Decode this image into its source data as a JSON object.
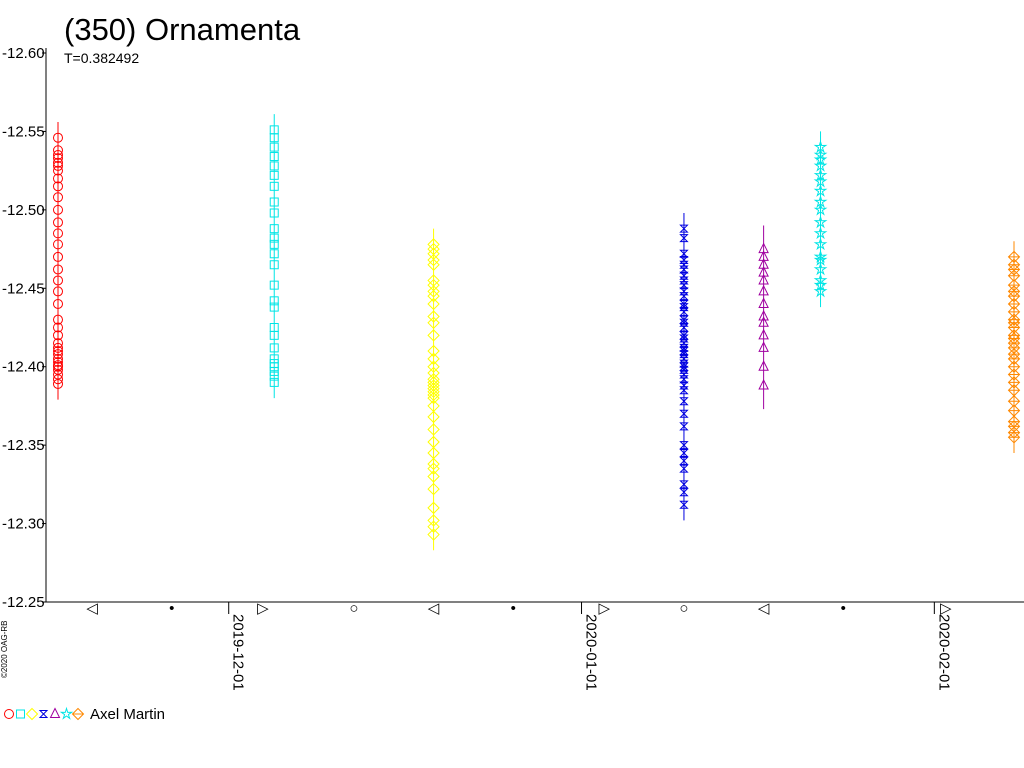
{
  "chart_data": {
    "type": "scatter",
    "title": "(350) Ornamenta",
    "subtitle": "T=0.382492",
    "xlabel": "",
    "ylabel": "",
    "ylim": [
      -12.6,
      -12.25
    ],
    "y_inverted": true,
    "y_ticks": [
      "-12.60",
      "-12.55",
      "-12.50",
      "-12.45",
      "-12.40",
      "-12.35",
      "-12.30",
      "-12.25"
    ],
    "xlim": [
      "2019-11-16",
      "2020-02-08"
    ],
    "x_ticks": [
      "2019-12-01",
      "2020-01-01",
      "2020-02-01"
    ],
    "moon_phases": [
      {
        "date": "2019-11-19",
        "symbol": "◁"
      },
      {
        "date": "2019-11-26",
        "symbol": "•"
      },
      {
        "date": "2019-12-04",
        "symbol": "▷"
      },
      {
        "date": "2019-12-12",
        "symbol": "○"
      },
      {
        "date": "2019-12-19",
        "symbol": "◁"
      },
      {
        "date": "2019-12-26",
        "symbol": "•"
      },
      {
        "date": "2020-01-03",
        "symbol": "▷"
      },
      {
        "date": "2020-01-10",
        "symbol": "○"
      },
      {
        "date": "2020-01-17",
        "symbol": "◁"
      },
      {
        "date": "2020-01-24",
        "symbol": "•"
      },
      {
        "date": "2020-02-02",
        "symbol": "▷"
      }
    ],
    "copyright": "©2020 OAG-RB",
    "legend_label": "Axel Martin",
    "series": [
      {
        "marker": "circle",
        "color": "#ff0000",
        "x": "2019-11-16",
        "error": 0.01,
        "values": [
          -12.546,
          -12.538,
          -12.535,
          -12.533,
          -12.53,
          -12.528,
          -12.525,
          -12.52,
          -12.515,
          -12.508,
          -12.5,
          -12.492,
          -12.485,
          -12.478,
          -12.47,
          -12.462,
          -12.455,
          -12.448,
          -12.44,
          -12.43,
          -12.425,
          -12.42,
          -12.415,
          -12.412,
          -12.41,
          -12.408,
          -12.405,
          -12.403,
          -12.401,
          -12.4,
          -12.398,
          -12.395,
          -12.392,
          -12.389
        ]
      },
      {
        "marker": "square",
        "color": "#00e5e5",
        "x": "2019-12-05",
        "error": 0.01,
        "values": [
          -12.551,
          -12.546,
          -12.54,
          -12.534,
          -12.528,
          -12.522,
          -12.515,
          -12.505,
          -12.498,
          -12.488,
          -12.482,
          -12.478,
          -12.472,
          -12.465,
          -12.452,
          -12.442,
          -12.438,
          -12.425,
          -12.42,
          -12.412,
          -12.405,
          -12.402,
          -12.4,
          -12.397,
          -12.394,
          -12.39
        ]
      },
      {
        "marker": "diamond",
        "color": "#ffff00",
        "x": "2019-12-19",
        "error": 0.01,
        "values": [
          -12.478,
          -12.475,
          -12.472,
          -12.468,
          -12.465,
          -12.455,
          -12.452,
          -12.448,
          -12.445,
          -12.44,
          -12.432,
          -12.428,
          -12.42,
          -12.41,
          -12.405,
          -12.4,
          -12.396,
          -12.392,
          -12.39,
          -12.388,
          -12.386,
          -12.384,
          -12.382,
          -12.38,
          -12.375,
          -12.368,
          -12.36,
          -12.352,
          -12.345,
          -12.338,
          -12.335,
          -12.33,
          -12.322,
          -12.31,
          -12.302,
          -12.298,
          -12.293
        ]
      },
      {
        "marker": "hourglass",
        "color": "#0000e0",
        "x": "2020-01-10",
        "error": 0.01,
        "values": [
          -12.488,
          -12.482,
          -12.472,
          -12.468,
          -12.465,
          -12.462,
          -12.458,
          -12.455,
          -12.452,
          -12.448,
          -12.445,
          -12.44,
          -12.438,
          -12.435,
          -12.43,
          -12.428,
          -12.425,
          -12.42,
          -12.418,
          -12.415,
          -12.412,
          -12.41,
          -12.408,
          -12.405,
          -12.402,
          -12.4,
          -12.398,
          -12.395,
          -12.392,
          -12.388,
          -12.385,
          -12.378,
          -12.37,
          -12.362,
          -12.35,
          -12.345,
          -12.34,
          -12.335,
          -12.325,
          -12.32,
          -12.312
        ]
      },
      {
        "marker": "triangle",
        "color": "#a000a0",
        "x": "2020-01-17",
        "error": 0.015,
        "values": [
          -12.475,
          -12.47,
          -12.465,
          -12.46,
          -12.455,
          -12.448,
          -12.44,
          -12.432,
          -12.428,
          -12.42,
          -12.412,
          -12.4,
          -12.388
        ]
      },
      {
        "marker": "star",
        "color": "#00e5e5",
        "x": "2020-01-22",
        "error": 0.01,
        "values": [
          -12.54,
          -12.535,
          -12.532,
          -12.528,
          -12.522,
          -12.518,
          -12.512,
          -12.505,
          -12.5,
          -12.492,
          -12.485,
          -12.478,
          -12.47,
          -12.468,
          -12.462,
          -12.455,
          -12.452,
          -12.448
        ]
      },
      {
        "marker": "diamond-plus",
        "color": "#ff8800",
        "x": "2020-02-08",
        "error": 0.01,
        "values": [
          -12.47,
          -12.465,
          -12.462,
          -12.458,
          -12.452,
          -12.448,
          -12.445,
          -12.44,
          -12.435,
          -12.43,
          -12.428,
          -12.425,
          -12.42,
          -12.418,
          -12.415,
          -12.412,
          -12.408,
          -12.405,
          -12.4,
          -12.395,
          -12.39,
          -12.385,
          -12.378,
          -12.372,
          -12.365,
          -12.362,
          -12.358,
          -12.355
        ]
      }
    ]
  }
}
